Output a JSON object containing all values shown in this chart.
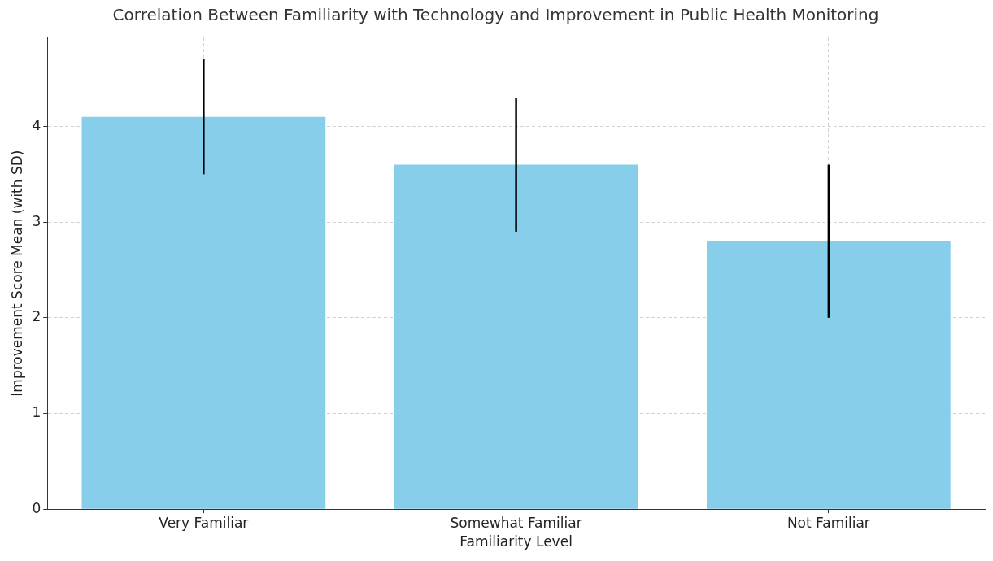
{
  "chart_data": {
    "type": "bar",
    "title": "Correlation Between Familiarity with Technology and Improvement in Public Health Monitoring",
    "xlabel": "Familiarity Level",
    "ylabel": "Improvement Score Mean (with SD)",
    "categories": [
      "Very Familiar",
      "Somewhat Familiar",
      "Not Familiar"
    ],
    "values": [
      4.1,
      3.6,
      2.8
    ],
    "errors": [
      0.6,
      0.7,
      0.8
    ],
    "color": "#87ceeb",
    "ylim": [
      0,
      4.93
    ],
    "yticks": [
      0,
      1,
      2,
      3,
      4
    ],
    "grid": true
  }
}
